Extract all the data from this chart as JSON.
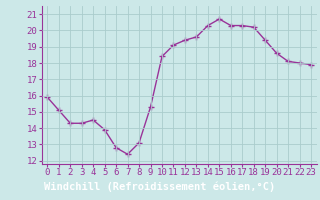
{
  "x": [
    0,
    1,
    2,
    3,
    4,
    5,
    6,
    7,
    8,
    9,
    10,
    11,
    12,
    13,
    14,
    15,
    16,
    17,
    18,
    19,
    20,
    21,
    22,
    23
  ],
  "y": [
    15.9,
    15.1,
    14.3,
    14.3,
    14.5,
    13.9,
    12.8,
    12.4,
    13.1,
    15.3,
    18.4,
    19.1,
    19.4,
    19.6,
    20.3,
    20.7,
    20.3,
    20.3,
    20.2,
    19.4,
    18.6,
    18.1,
    18.0,
    17.9
  ],
  "line_color": "#993399",
  "marker": "+",
  "markersize": 4,
  "linewidth": 1.0,
  "xlabel": "Windchill (Refroidissement éolien,°C)",
  "xlabel_fontsize": 7.5,
  "ylabel_ticks": [
    12,
    13,
    14,
    15,
    16,
    17,
    18,
    19,
    20,
    21
  ],
  "xlim": [
    -0.5,
    23.5
  ],
  "ylim": [
    11.8,
    21.5
  ],
  "background_color": "#cce8e8",
  "grid_color": "#aacccc",
  "tick_fontsize": 6.5,
  "label_color": "#993399",
  "label_bg_color": "#993399"
}
